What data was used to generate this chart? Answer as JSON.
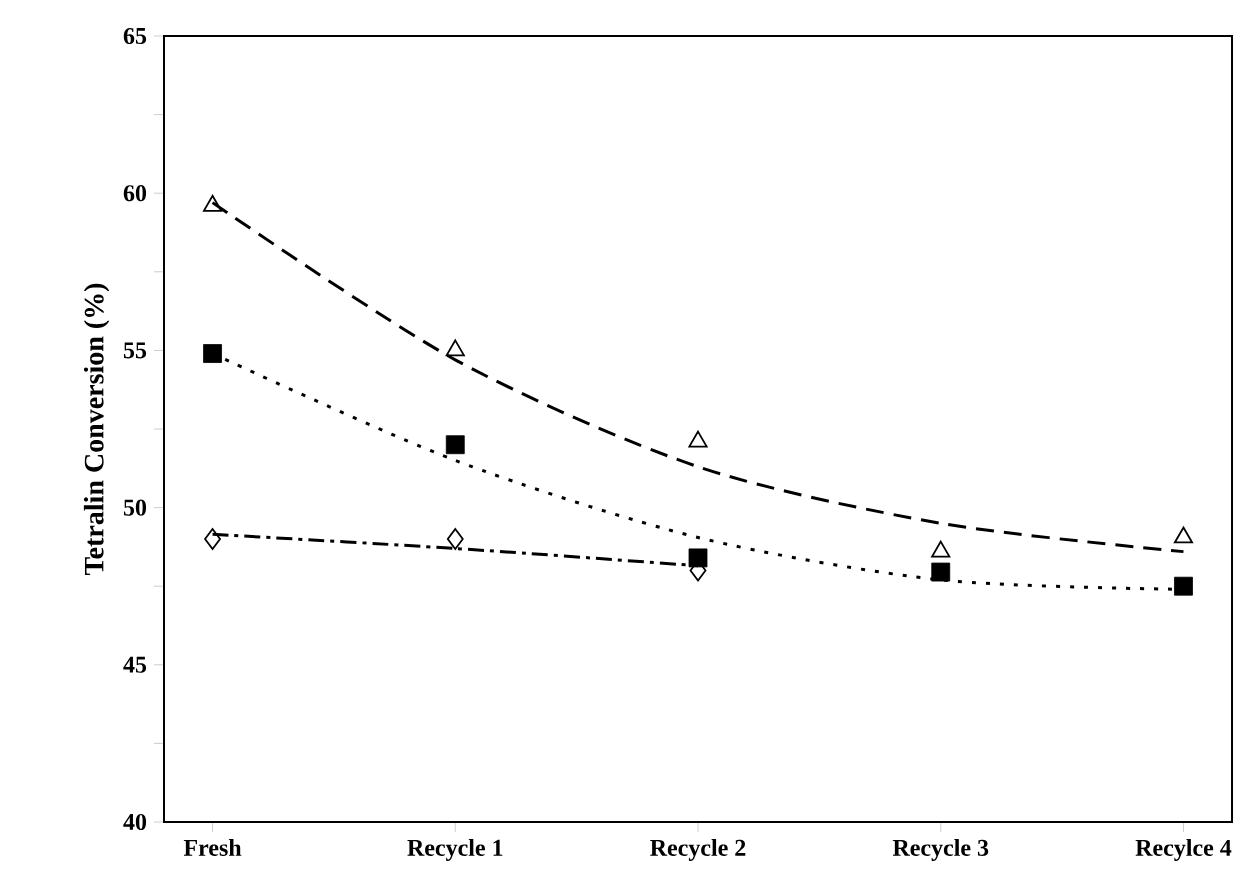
{
  "chart_data": {
    "type": "scatter",
    "ylabel": "Tetralin Conversion (%)",
    "categories": [
      "Fresh",
      "Recycle 1",
      "Recycle 2",
      "Recycle 3",
      "Recylce 4"
    ],
    "ylim": [
      40,
      65
    ],
    "yticks": [
      40,
      {
        "value": 42.5,
        "label": null
      },
      45,
      {
        "value": 47.5,
        "label": null
      },
      50,
      {
        "value": 52.5,
        "label": null
      },
      55,
      {
        "value": 57.5,
        "label": null
      },
      60,
      {
        "value": 62.5,
        "label": null
      },
      65
    ],
    "grid": false,
    "series": [
      {
        "color": "#000000",
        "marker": "triangle",
        "values": [
          59.6,
          55.0,
          52.1,
          48.6,
          49.05
        ]
      },
      {
        "color": "#000000",
        "marker": "square",
        "values": [
          54.9,
          52.0,
          48.4,
          47.95,
          47.5
        ]
      },
      {
        "color": "#000000",
        "marker": "diamond",
        "values": [
          49.0,
          49.0,
          48.0,
          null,
          null
        ]
      },
      {
        "type": "line",
        "color": "#000000",
        "marker": "none",
        "line_style": "dashed",
        "values": [
          59.7,
          54.7,
          51.3,
          49.5,
          48.6
        ]
      },
      {
        "type": "line",
        "color": "#000000",
        "marker": "none",
        "line_style": "dotted",
        "values": [
          54.9,
          51.5,
          49.05,
          47.7,
          47.4
        ]
      },
      {
        "type": "line",
        "color": "#000000",
        "marker": "none",
        "line_style": "dashdotted",
        "values": [
          49.15,
          48.7,
          48.15,
          null,
          null
        ]
      }
    ]
  }
}
